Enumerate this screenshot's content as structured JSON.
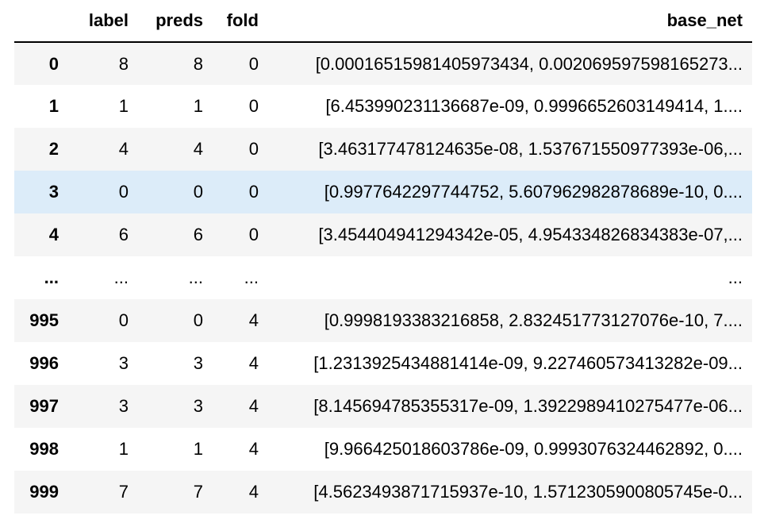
{
  "table": {
    "columns": [
      "label",
      "preds",
      "fold",
      "base_net"
    ],
    "rows": [
      {
        "index": "0",
        "label": "8",
        "preds": "8",
        "fold": "0",
        "base_net": "[0.00016515981405973434, 0.002069597598165273..."
      },
      {
        "index": "1",
        "label": "1",
        "preds": "1",
        "fold": "0",
        "base_net": "[6.453990231136687e-09, 0.9996652603149414, 1...."
      },
      {
        "index": "2",
        "label": "4",
        "preds": "4",
        "fold": "0",
        "base_net": "[3.463177478124635e-08, 1.537671550977393e-06,..."
      },
      {
        "index": "3",
        "label": "0",
        "preds": "0",
        "fold": "0",
        "base_net": "[0.9977642297744752, 5.607962982878689e-10, 0...."
      },
      {
        "index": "4",
        "label": "6",
        "preds": "6",
        "fold": "0",
        "base_net": "[3.454404941294342e-05, 4.954334826834383e-07,..."
      },
      {
        "index": "...",
        "label": "...",
        "preds": "...",
        "fold": "...",
        "base_net": "..."
      },
      {
        "index": "995",
        "label": "0",
        "preds": "0",
        "fold": "4",
        "base_net": "[0.9998193383216858, 2.832451773127076e-10, 7...."
      },
      {
        "index": "996",
        "label": "3",
        "preds": "3",
        "fold": "4",
        "base_net": "[1.2313925434881414e-09, 9.227460573413282e-09..."
      },
      {
        "index": "997",
        "label": "3",
        "preds": "3",
        "fold": "4",
        "base_net": "[8.145694785355317e-09, 1.3922989410275477e-06..."
      },
      {
        "index": "998",
        "label": "1",
        "preds": "1",
        "fold": "4",
        "base_net": "[9.966425018603786e-09, 0.9993076324462892, 0...."
      },
      {
        "index": "999",
        "label": "7",
        "preds": "7",
        "fold": "4",
        "base_net": "[4.5623493871715937e-10, 1.5712305900805745e-0..."
      }
    ],
    "highlighted_row": 3
  },
  "colors": {
    "stripe": "#f5f5f5",
    "highlight": "#dcecf9",
    "header_rule": "#000000"
  }
}
